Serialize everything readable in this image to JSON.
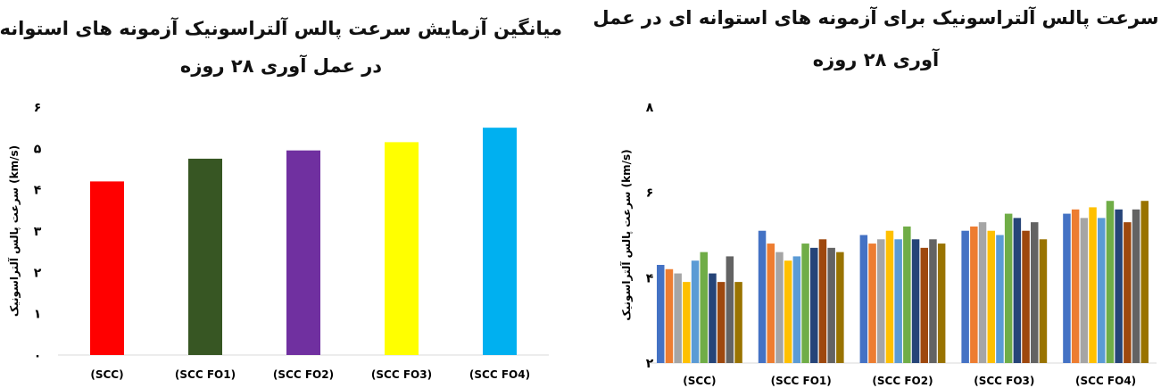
{
  "chart_data": [
    {
      "type": "bar",
      "title_line1": "میانگین آزمایش سرعت پالس آلتراسونیک آزمونه های استوانه ای",
      "title_line2": "در عمل آوری ۲۸ روزه",
      "ylabel": "سرعت پالس آلتراسونیک (km/s)",
      "ylim": [
        0,
        6
      ],
      "yticks": [
        "۰",
        "۱",
        "۲",
        "۳",
        "۴",
        "۵",
        "۶"
      ],
      "categories": [
        "(SCC)",
        "(SCC FO1)",
        "(SCC FO2)",
        "(SCC FO3)",
        "(SCC FO4)"
      ],
      "values": [
        4.2,
        4.75,
        4.95,
        5.15,
        5.5
      ],
      "colors": [
        "#ff0000",
        "#375623",
        "#7030a0",
        "#ffff00",
        "#00b0f0"
      ],
      "grid": false,
      "legend": "none"
    },
    {
      "type": "bar",
      "title_line1": "سرعت پالس آلتراسونیک برای آزمونه های استوانه ای در عمل",
      "title_line2": "آوری ۲۸ روزه",
      "ylabel": "سرعت پالس آلتراسونیک (km/s)",
      "ylim": [
        2,
        8
      ],
      "yticks": [
        "۲",
        "۴",
        "۶",
        "۸"
      ],
      "categories": [
        "(SCC)",
        "(SCC FO1)",
        "(SCC FO2)",
        "(SCC FO3)",
        "(SCC FO4)"
      ],
      "series_colors": [
        "#4472c4",
        "#ed7d31",
        "#a5a5a5",
        "#ffc000",
        "#5b9bd5",
        "#70ad47",
        "#264478",
        "#9e480e",
        "#636363",
        "#997300"
      ],
      "values": [
        [
          4.3,
          4.2,
          4.1,
          3.9,
          4.4,
          4.6,
          4.1,
          3.9,
          4.5,
          3.9
        ],
        [
          5.1,
          4.8,
          4.6,
          4.4,
          4.5,
          4.8,
          4.7,
          4.9,
          4.7,
          4.6
        ],
        [
          5.0,
          4.8,
          4.9,
          5.1,
          4.9,
          5.2,
          4.9,
          4.7,
          4.9,
          4.8
        ],
        [
          5.1,
          5.2,
          5.3,
          5.1,
          5.0,
          5.5,
          5.4,
          5.1,
          5.3,
          4.9
        ],
        [
          5.5,
          5.6,
          5.4,
          5.65,
          5.4,
          5.8,
          5.6,
          5.3,
          5.6,
          5.8
        ]
      ],
      "grid": false,
      "legend": "none"
    }
  ]
}
